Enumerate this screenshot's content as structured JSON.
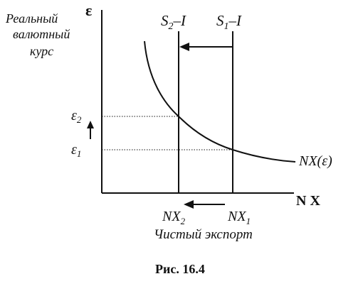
{
  "y_axis_label_line1": "Реальный",
  "y_axis_label_line2": "валютный",
  "y_axis_label_line3": "курс",
  "y_axis_symbol": "ε",
  "x_axis_label": "N X",
  "x_axis_caption": "Чистый экспорт",
  "eps_levels": {
    "e2": "ε",
    "e2_sub": "2",
    "e1": "ε",
    "e1_sub": "1"
  },
  "savings_lines": {
    "s2_main": "S",
    "s2_sub": "2",
    "s2_rest": "–I",
    "s1_main": "S",
    "s1_sub": "1",
    "s1_rest": "–I"
  },
  "nx_labels": {
    "nx2_main": "NX",
    "nx2_sub": "2",
    "nx1_main": "NX",
    "nx1_sub": "1"
  },
  "curve_label": "NX(ε)",
  "figure_caption": "Рис. 16.4"
}
